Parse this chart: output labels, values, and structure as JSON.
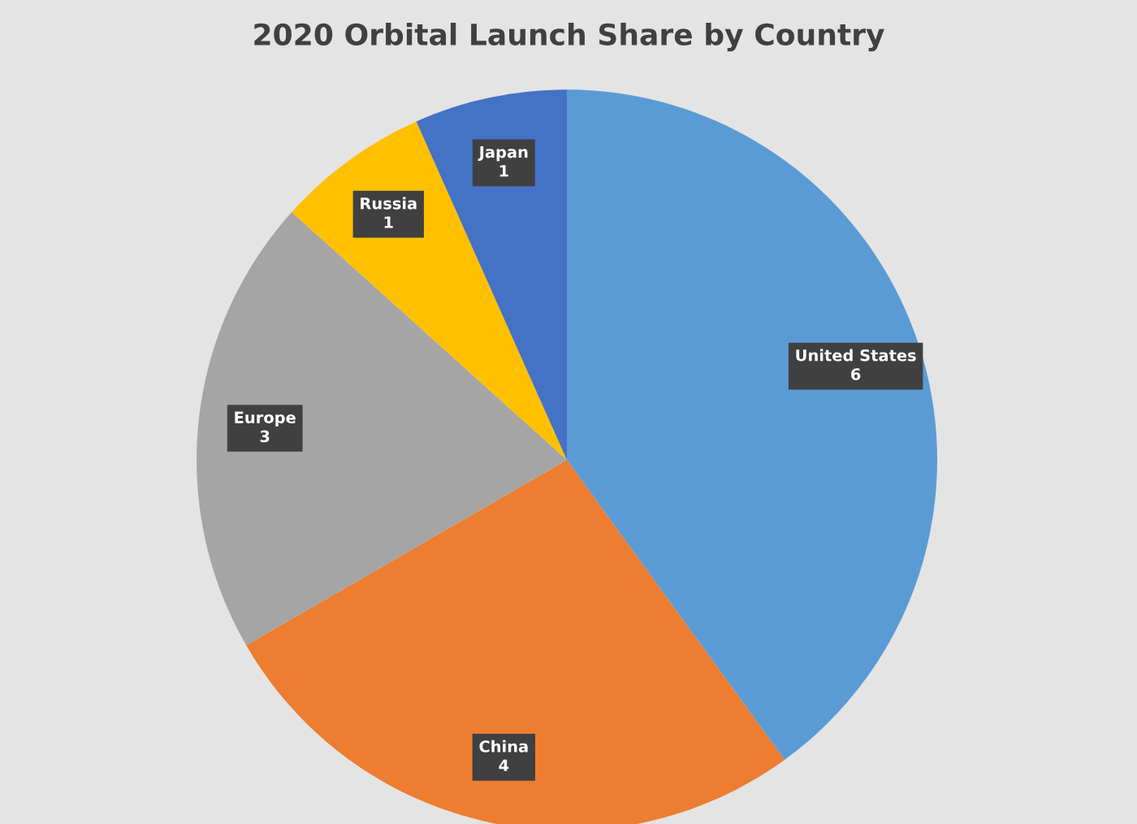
{
  "chart_data": {
    "type": "pie",
    "title": "2020 Orbital Launch Share by Country",
    "categories": [
      "United States",
      "China",
      "Europe",
      "Russia",
      "Japan"
    ],
    "values": [
      6,
      4,
      3,
      1,
      1
    ],
    "colors": [
      "#5b9bd5",
      "#ed7d31",
      "#a5a5a5",
      "#ffc000",
      "#4472c4"
    ],
    "data_labels": true,
    "legend": false
  }
}
